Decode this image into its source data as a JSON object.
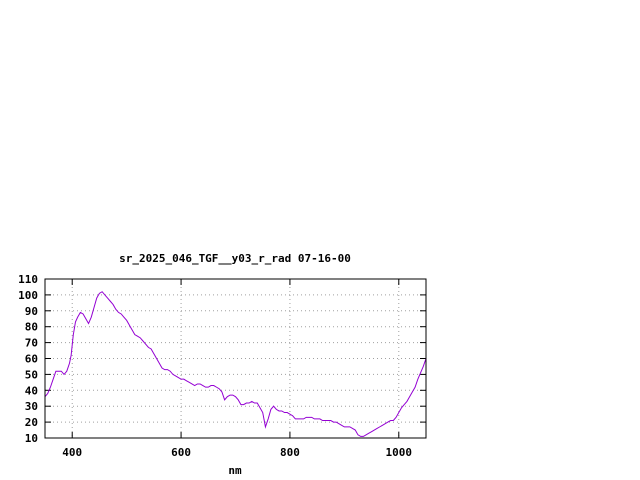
{
  "chart_data": {
    "type": "line",
    "title": "sr_2025_046_TGF__y03_r_rad 07-16-00",
    "xlabel": "nm",
    "ylabel": "",
    "xlim": [
      350,
      1050
    ],
    "ylim": [
      10,
      110
    ],
    "grid": true,
    "x_ticks": [
      400,
      600,
      800,
      1000
    ],
    "y_ticks": [
      10,
      20,
      30,
      40,
      50,
      60,
      70,
      80,
      90,
      100,
      110
    ],
    "series": [
      {
        "color": "#9400d3",
        "x": [
          350,
          355,
          360,
          365,
          370,
          375,
          380,
          385,
          390,
          395,
          398,
          402,
          406,
          410,
          415,
          420,
          425,
          430,
          435,
          440,
          445,
          450,
          455,
          460,
          465,
          470,
          475,
          480,
          485,
          490,
          495,
          500,
          505,
          510,
          515,
          520,
          525,
          530,
          535,
          540,
          545,
          550,
          555,
          560,
          565,
          570,
          575,
          580,
          585,
          590,
          595,
          600,
          605,
          610,
          615,
          620,
          625,
          630,
          635,
          640,
          645,
          650,
          655,
          660,
          665,
          670,
          675,
          680,
          685,
          690,
          695,
          700,
          705,
          710,
          715,
          720,
          725,
          730,
          735,
          740,
          745,
          750,
          755,
          760,
          765,
          770,
          775,
          780,
          785,
          790,
          795,
          800,
          805,
          810,
          815,
          820,
          825,
          830,
          835,
          840,
          845,
          850,
          855,
          860,
          865,
          870,
          875,
          880,
          885,
          890,
          895,
          900,
          905,
          910,
          915,
          920,
          925,
          930,
          935,
          940,
          945,
          950,
          955,
          960,
          965,
          970,
          975,
          980,
          985,
          990,
          995,
          1000,
          1005,
          1010,
          1015,
          1020,
          1025,
          1030,
          1035,
          1040,
          1045,
          1050
        ],
        "y": [
          36,
          38,
          42,
          47,
          52,
          52,
          52,
          50,
          52,
          57,
          62,
          75,
          83,
          86,
          89,
          88,
          85,
          82,
          86,
          92,
          98,
          101,
          102,
          100,
          98,
          96,
          94,
          91,
          89,
          88,
          86,
          84,
          81,
          78,
          75,
          74,
          73,
          71,
          69,
          67,
          66,
          63,
          60,
          57,
          54,
          53,
          53,
          52,
          50,
          49,
          48,
          47,
          47,
          46,
          45,
          44,
          43,
          44,
          44,
          43,
          42,
          42,
          43,
          43,
          42,
          41,
          39,
          34,
          36,
          37,
          37,
          36,
          34,
          31,
          31,
          32,
          32,
          33,
          32,
          32,
          29,
          26,
          17,
          22,
          28,
          30,
          28,
          27,
          27,
          26,
          26,
          25,
          24,
          22,
          22,
          22,
          22,
          23,
          23,
          23,
          22,
          22,
          22,
          21,
          21,
          21,
          21,
          20,
          20,
          19,
          18,
          17,
          17,
          17,
          16,
          15,
          12,
          11,
          11,
          12,
          13,
          14,
          15,
          16,
          17,
          18,
          19,
          20,
          21,
          21,
          23,
          26,
          29,
          31,
          33,
          36,
          39,
          42,
          47,
          51,
          55,
          60
        ]
      }
    ]
  }
}
